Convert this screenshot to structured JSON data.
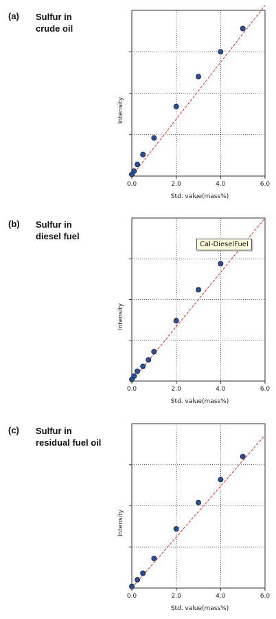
{
  "chart_data": [
    {
      "type": "scatter",
      "panel_label": "(a)",
      "title_lines": [
        "Sulfur in",
        "crude oil"
      ],
      "xlabel": "Std. value(mass%)",
      "ylabel": "Intensity",
      "xlim": [
        0,
        6
      ],
      "ylim": [
        0,
        1
      ],
      "x_ticks": [
        "0.0",
        "2.0",
        "4.0",
        "6.0"
      ],
      "grid": true,
      "points": [
        {
          "x": 0.0,
          "y": 0.01
        },
        {
          "x": 0.1,
          "y": 0.03
        },
        {
          "x": 0.25,
          "y": 0.07
        },
        {
          "x": 0.5,
          "y": 0.13
        },
        {
          "x": 1.0,
          "y": 0.23
        },
        {
          "x": 2.0,
          "y": 0.42
        },
        {
          "x": 3.0,
          "y": 0.6
        },
        {
          "x": 4.0,
          "y": 0.75
        },
        {
          "x": 5.0,
          "y": 0.89
        }
      ],
      "fit_line": [
        {
          "x": 0,
          "y": 0.0
        },
        {
          "x": 6,
          "y": 1.03
        }
      ]
    },
    {
      "type": "scatter",
      "panel_label": "(b)",
      "title_lines": [
        "Sulfur in",
        "diesel fuel"
      ],
      "xlabel": "Std. value(mass%)",
      "ylabel": "Intensity",
      "xlim": [
        0,
        6
      ],
      "ylim": [
        0,
        1
      ],
      "x_ticks": [
        "0.0",
        "2.0",
        "4.0",
        "6.0"
      ],
      "grid": true,
      "tooltip": "Cal-DieselFuel",
      "points": [
        {
          "x": 0.0,
          "y": 0.01
        },
        {
          "x": 0.1,
          "y": 0.03
        },
        {
          "x": 0.25,
          "y": 0.06
        },
        {
          "x": 0.5,
          "y": 0.09
        },
        {
          "x": 0.75,
          "y": 0.13
        },
        {
          "x": 1.0,
          "y": 0.18
        },
        {
          "x": 2.0,
          "y": 0.37
        },
        {
          "x": 3.0,
          "y": 0.56
        },
        {
          "x": 4.0,
          "y": 0.72
        }
      ],
      "fit_line": [
        {
          "x": 0,
          "y": 0.0
        },
        {
          "x": 6,
          "y": 1.0
        }
      ]
    },
    {
      "type": "scatter",
      "panel_label": "(c)",
      "title_lines": [
        "Sulfur in",
        "residual fuel oil"
      ],
      "xlabel": "Std. value(mass%)",
      "ylabel": "Intensity",
      "xlim": [
        0,
        6
      ],
      "ylim": [
        0,
        1
      ],
      "x_ticks": [
        "0.0",
        "2.0",
        "4.0",
        "6.0"
      ],
      "grid": true,
      "points": [
        {
          "x": 0.0,
          "y": 0.01
        },
        {
          "x": 0.25,
          "y": 0.05
        },
        {
          "x": 0.5,
          "y": 0.09
        },
        {
          "x": 1.0,
          "y": 0.18
        },
        {
          "x": 2.0,
          "y": 0.36
        },
        {
          "x": 3.0,
          "y": 0.52
        },
        {
          "x": 4.0,
          "y": 0.66
        },
        {
          "x": 5.0,
          "y": 0.8
        }
      ],
      "fit_line": [
        {
          "x": 0,
          "y": 0.0
        },
        {
          "x": 6,
          "y": 0.93
        }
      ]
    }
  ]
}
